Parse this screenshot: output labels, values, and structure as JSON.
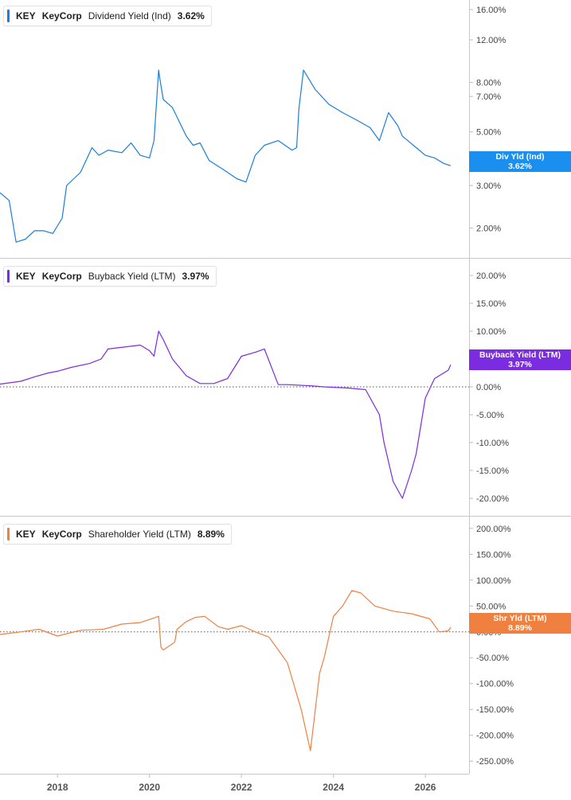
{
  "chart_data": [
    {
      "type": "line",
      "symbol": "KEY",
      "company": "KeyCorp",
      "metric": "Dividend Yield (Ind)",
      "current_value": "3.62%",
      "tag_label": "Div Yld (Ind)",
      "scale": "log",
      "color": "#1a7fd9",
      "y_ticks": [
        16,
        12,
        8,
        7,
        5,
        3,
        2
      ],
      "y_tick_labels": [
        "16.00%",
        "12.00%",
        "8.00%",
        "7.00%",
        "5.00%",
        "3.00%",
        "2.00%"
      ],
      "ylim": [
        1.6,
        16.5
      ],
      "zero_line": false,
      "x": [
        2016.75,
        2016.95,
        2017.1,
        2017.3,
        2017.5,
        2017.7,
        2017.9,
        2018.1,
        2018.2,
        2018.5,
        2018.75,
        2018.9,
        2019.1,
        2019.4,
        2019.6,
        2019.8,
        2020.0,
        2020.1,
        2020.2,
        2020.22,
        2020.3,
        2020.5,
        2020.8,
        2020.95,
        2021.1,
        2021.3,
        2021.6,
        2021.9,
        2022.1,
        2022.3,
        2022.5,
        2022.8,
        2023.1,
        2023.2,
        2023.25,
        2023.35,
        2023.6,
        2023.9,
        2024.2,
        2024.5,
        2024.8,
        2025.0,
        2025.2,
        2025.4,
        2025.5,
        2025.8,
        2026.0,
        2026.2,
        2026.4,
        2026.55
      ],
      "y": [
        2.8,
        2.6,
        1.75,
        1.8,
        1.95,
        1.95,
        1.9,
        2.2,
        3.0,
        3.4,
        4.3,
        4.0,
        4.2,
        4.1,
        4.5,
        4.0,
        3.9,
        4.6,
        9.0,
        8.4,
        6.8,
        6.3,
        4.8,
        4.4,
        4.5,
        3.8,
        3.5,
        3.2,
        3.1,
        4.0,
        4.4,
        4.6,
        4.2,
        4.3,
        6.2,
        9.0,
        7.5,
        6.5,
        6.0,
        5.6,
        5.2,
        4.6,
        6.0,
        5.3,
        4.8,
        4.3,
        4.0,
        3.9,
        3.7,
        3.62
      ]
    },
    {
      "type": "line",
      "symbol": "KEY",
      "company": "KeyCorp",
      "metric": "Buyback Yield (LTM)",
      "current_value": "3.97%",
      "tag_label": "Buyback Yield (LTM)",
      "scale": "linear",
      "color": "#7b2be0",
      "y_ticks": [
        20,
        15,
        10,
        5,
        0,
        -5,
        -10,
        -15,
        -20
      ],
      "y_tick_labels": [
        "20.00%",
        "15.00%",
        "10.00%",
        "5.00%",
        "0.00%",
        "-5.00%",
        "-10.00%",
        "-15.00%",
        "-20.00%"
      ],
      "ylim": [
        -22,
        22
      ],
      "zero_line": true,
      "x": [
        2016.75,
        2017.2,
        2017.5,
        2017.8,
        2018.0,
        2018.3,
        2018.7,
        2018.95,
        2019.1,
        2019.5,
        2019.8,
        2020.0,
        2020.1,
        2020.2,
        2020.3,
        2020.5,
        2020.8,
        2021.1,
        2021.4,
        2021.7,
        2022.0,
        2022.3,
        2022.5,
        2022.8,
        2023.0,
        2023.5,
        2023.8,
        2024.3,
        2024.7,
        2025.0,
        2025.1,
        2025.3,
        2025.5,
        2025.7,
        2025.8,
        2026.0,
        2026.2,
        2026.5,
        2026.55
      ],
      "y": [
        0.5,
        1.0,
        1.8,
        2.5,
        2.8,
        3.5,
        4.2,
        5.0,
        6.8,
        7.2,
        7.5,
        6.5,
        5.5,
        10.0,
        8.5,
        5.0,
        2.0,
        0.6,
        0.6,
        1.5,
        5.5,
        6.2,
        6.8,
        0.4,
        0.4,
        0.2,
        0.0,
        -0.2,
        -0.5,
        -5.0,
        -10.0,
        -17.0,
        -20.0,
        -15.0,
        -12.0,
        -2.0,
        1.5,
        3.0,
        3.97
      ]
    },
    {
      "type": "line",
      "symbol": "KEY",
      "company": "KeyCorp",
      "metric": "Shareholder Yield (LTM)",
      "current_value": "8.89%",
      "tag_label": "Shr Yld (LTM)",
      "scale": "linear",
      "color": "#f08040",
      "y_ticks": [
        200,
        150,
        100,
        50,
        0,
        -50,
        -100,
        -150,
        -200,
        -250
      ],
      "y_tick_labels": [
        "200.00%",
        "150.00%",
        "100.00%",
        "50.00%",
        "0.00%",
        "-50.00%",
        "-100.00%",
        "-150.00%",
        "-200.00%",
        "-250.00%"
      ],
      "ylim": [
        -262,
        212
      ],
      "zero_line": true,
      "x": [
        2016.75,
        2017.2,
        2017.6,
        2018.0,
        2018.5,
        2019.0,
        2019.4,
        2019.8,
        2020.2,
        2020.25,
        2020.3,
        2020.55,
        2020.6,
        2020.8,
        2021.0,
        2021.2,
        2021.5,
        2021.7,
        2022.0,
        2022.3,
        2022.6,
        2022.8,
        2023.0,
        2023.3,
        2023.5,
        2023.7,
        2023.8,
        2024.0,
        2024.2,
        2024.4,
        2024.6,
        2024.9,
        2025.3,
        2025.7,
        2026.1,
        2026.3,
        2026.5,
        2026.55
      ],
      "y": [
        -5,
        0,
        5,
        -8,
        3,
        5,
        15,
        18,
        30,
        -30,
        -35,
        -20,
        5,
        20,
        28,
        30,
        10,
        5,
        12,
        0,
        -10,
        -35,
        -60,
        -150,
        -230,
        -80,
        -50,
        30,
        50,
        80,
        75,
        50,
        40,
        35,
        25,
        0,
        2,
        8.89
      ]
    }
  ],
  "x_axis": {
    "ticks": [
      2018,
      2020,
      2022,
      2024,
      2026
    ],
    "tick_labels": [
      "2018",
      "2020",
      "2022",
      "2024",
      "2026"
    ],
    "xlim": [
      2016.75,
      2026.95
    ]
  }
}
